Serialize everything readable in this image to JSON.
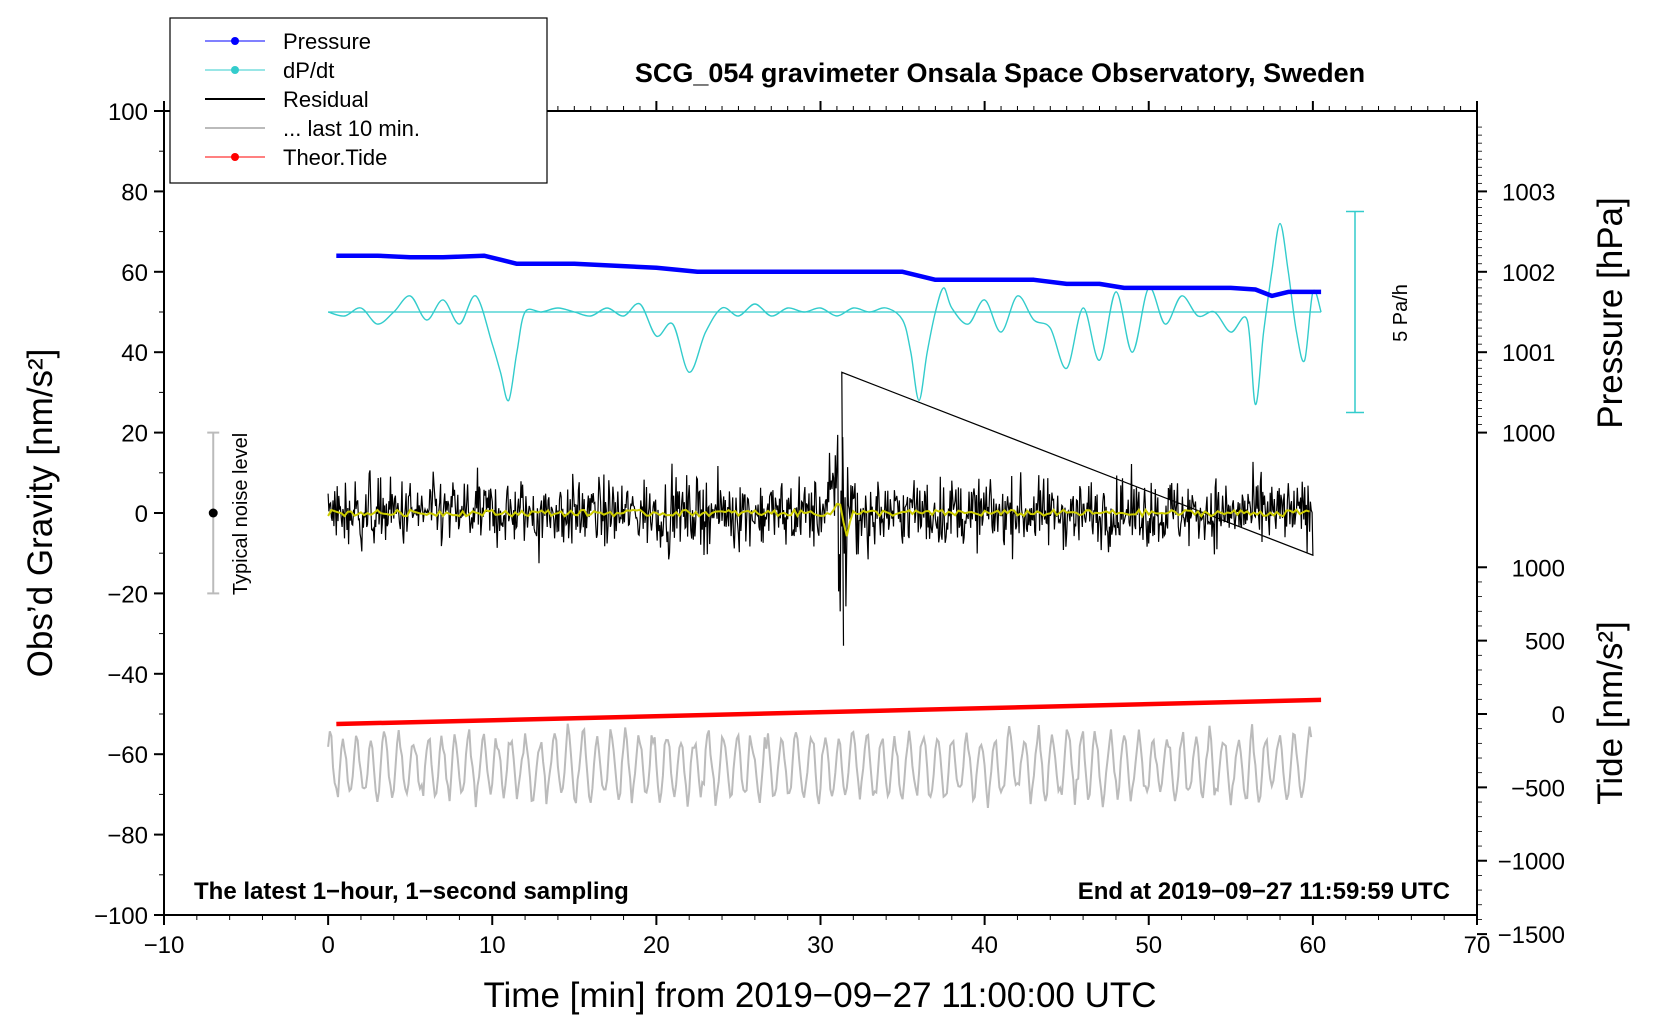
{
  "chart_data": {
    "type": "line",
    "title": "SCG_054 gravimeter Onsala Space Observatory, Sweden",
    "xlabel": "Time [min] from 2019−09−27 11:00:00 UTC",
    "ylabel_left": "Obs’d Gravity [nm/s²]",
    "ylabel_pressure": "Pressure [hPa]",
    "ylabel_tide": "Tide [nm/s²]",
    "xlim": [
      -10,
      70
    ],
    "ylim": [
      -100,
      100
    ],
    "x_ticks": [
      "−10",
      "0",
      "10",
      "20",
      "30",
      "40",
      "50",
      "60",
      "70"
    ],
    "y_ticks": [
      "−100",
      "−80",
      "−60",
      "−40",
      "−20",
      "0",
      "20",
      "40",
      "60",
      "80",
      "100"
    ],
    "pressure_ticks": [
      "1000",
      "1001",
      "1002",
      "1003"
    ],
    "tide_ticks": [
      "−1500",
      "−1000",
      "−500",
      "0",
      "500",
      "1000"
    ],
    "legend": {
      "position": "top-left",
      "entries": [
        {
          "label": "Pressure",
          "color": "#0000ff",
          "marker": "dot"
        },
        {
          "label": "dP/dt",
          "color": "#33cccc",
          "marker": "dot"
        },
        {
          "label": "Residual",
          "color": "#000000",
          "marker": "none"
        },
        {
          "label": "... last 10 min.",
          "color": "#bbbbbb",
          "marker": "none"
        },
        {
          "label": "Theor.Tide",
          "color": "#ff0000",
          "marker": "dot"
        }
      ]
    },
    "annotations": {
      "bottom_left": "The latest 1−hour, 1−second sampling",
      "bottom_right": "End at 2019−09−27 11:59:59 UTC",
      "noise_label": "Typical noise level",
      "noise_range": [
        -20,
        20
      ],
      "scale_label": "5 Pa/h"
    },
    "series": [
      {
        "name": "Pressure",
        "color": "#0000ff",
        "unit": "hPa",
        "x": [
          0.5,
          3,
          5,
          7,
          9.5,
          10.5,
          11.5,
          15,
          20,
          22.5,
          25,
          30,
          35,
          37,
          40,
          43,
          45,
          47,
          48.5,
          52,
          55,
          56.5,
          57.5,
          58.5,
          60,
          60.5
        ],
        "values": [
          1002.2,
          1002.2,
          1002.18,
          1002.18,
          1002.2,
          1002.15,
          1002.1,
          1002.1,
          1002.05,
          1002.0,
          1002.0,
          1002.0,
          1002.0,
          1001.9,
          1001.9,
          1001.9,
          1001.85,
          1001.85,
          1001.8,
          1001.8,
          1001.8,
          1001.78,
          1001.7,
          1001.75,
          1001.75,
          1001.75
        ]
      },
      {
        "name": "dP/dt",
        "color": "#33cccc",
        "x": [
          0,
          1,
          2,
          3,
          4,
          5,
          6,
          7,
          8,
          9,
          10,
          10.5,
          11,
          11.5,
          12,
          13,
          14,
          15,
          16,
          17,
          18,
          19,
          20,
          21,
          22,
          23,
          24,
          25,
          26,
          27,
          28,
          29,
          30,
          31,
          32,
          33,
          34,
          35,
          35.5,
          36,
          36.5,
          37,
          37.5,
          38,
          39,
          40,
          41,
          42,
          43,
          44,
          45,
          46,
          47,
          48,
          49,
          50,
          51,
          52,
          53,
          54,
          55,
          56,
          56.5,
          57,
          57.5,
          58,
          58.5,
          59,
          59.5,
          60,
          60.5
        ],
        "values": [
          50,
          49,
          51,
          47,
          50,
          54,
          48,
          53,
          47,
          54,
          42,
          35,
          28,
          40,
          50,
          50,
          51,
          50,
          49,
          51,
          49,
          52,
          44,
          47,
          35,
          45,
          51,
          49,
          52,
          49,
          51,
          50,
          51,
          49,
          51,
          50,
          51,
          48,
          40,
          28,
          40,
          50,
          56,
          51,
          47,
          53,
          45,
          54,
          48,
          46,
          36,
          51,
          38,
          55,
          40,
          56,
          47,
          54,
          49,
          50,
          45,
          48,
          27,
          45,
          60,
          72,
          60,
          45,
          38,
          55,
          50
        ]
      },
      {
        "name": "Residual",
        "color": "#000000",
        "range": [
          0,
          60
        ],
        "noise_amplitude": 8,
        "burst": {
          "x": 31.3,
          "min": -33,
          "max": 35
        }
      },
      {
        "name": "Residual (smoothed)",
        "color": "#cccc00",
        "value": 0
      },
      {
        "name": "... last 10 min.",
        "color": "#bbbbbb",
        "range": [
          0,
          60
        ],
        "values_approx": [
          -64,
          -56,
          -73
        ]
      },
      {
        "name": "Theor.Tide",
        "color": "#ff0000",
        "unit": "nm/s²",
        "x": [
          0.5,
          60.5
        ],
        "values": [
          -52.5,
          -46.5
        ]
      }
    ]
  }
}
